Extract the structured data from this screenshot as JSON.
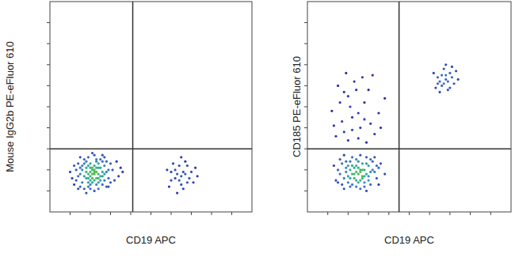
{
  "chart_data": [
    {
      "type": "scatter",
      "xlabel": "CD19 APC",
      "ylabel": "Mouse IgG2b PE-eFluor 610",
      "xlim": [
        0,
        100
      ],
      "ylim": [
        0,
        100
      ],
      "xticks": [
        10,
        20,
        30,
        40,
        50,
        60,
        70,
        80,
        90
      ],
      "yticks": [
        10,
        20,
        30,
        40,
        50,
        60,
        70,
        80,
        90
      ],
      "tick_labels": false,
      "grid": false,
      "color": "#2828a0",
      "gate_x": 41,
      "gate_y": 30,
      "x": [
        22,
        18,
        25,
        20,
        27,
        15,
        23,
        19,
        29,
        17,
        21,
        24,
        13,
        26,
        22,
        31,
        16,
        20,
        28,
        24,
        11,
        19,
        23,
        33,
        14,
        21,
        26,
        18,
        30,
        22,
        17,
        25,
        12,
        20,
        27,
        15,
        23,
        34,
        19,
        24,
        21,
        16,
        28,
        22,
        18,
        26,
        13,
        29,
        20,
        24,
        17,
        35,
        22,
        14,
        27,
        19,
        23,
        10,
        25,
        21,
        18,
        30,
        24,
        16,
        20,
        26,
        22,
        15,
        28,
        19,
        23,
        12,
        32,
        21,
        25,
        18,
        27,
        20,
        24,
        14,
        22,
        17,
        29,
        21,
        36,
        23,
        19,
        26,
        15,
        20,
        65,
        62,
        68,
        64,
        60,
        70,
        66,
        63,
        67,
        58,
        69,
        65,
        61,
        72,
        64,
        66,
        59,
        68,
        63,
        71,
        62,
        67,
        65,
        60,
        73
      ],
      "values": [
        19,
        21,
        17,
        15,
        22,
        18,
        24,
        12,
        16,
        25,
        20,
        14,
        20,
        27,
        10,
        20,
        14,
        23,
        12,
        21,
        16,
        18,
        16,
        24,
        23,
        28,
        19,
        9,
        14,
        22,
        17,
        25,
        13,
        17,
        15,
        26,
        19,
        17,
        14,
        11,
        21,
        20,
        24,
        15,
        24,
        13,
        15,
        20,
        19,
        18,
        11,
        21,
        27,
        17,
        18,
        22,
        13,
        19,
        21,
        16,
        19,
        23,
        16,
        22,
        13,
        24,
        18,
        12,
        19,
        26,
        21,
        22,
        15,
        14,
        15,
        16,
        26,
        21,
        23,
        11,
        20,
        23,
        12,
        18,
        19,
        25,
        16,
        17,
        21,
        11,
        17,
        20,
        14,
        22,
        15,
        19,
        11,
        18,
        24,
        20,
        16,
        13,
        23,
        21,
        15,
        19,
        12,
        22,
        9,
        14,
        16,
        18,
        26,
        19,
        17
      ]
    },
    {
      "type": "scatter",
      "xlabel": "CD19 APC",
      "ylabel": "CD185 PE-eFluor 610",
      "xlim": [
        0,
        100
      ],
      "ylim": [
        0,
        100
      ],
      "xticks": [
        10,
        20,
        30,
        40,
        50,
        60,
        70,
        80,
        90
      ],
      "yticks": [
        10,
        20,
        30,
        40,
        50,
        60,
        70,
        80,
        90
      ],
      "tick_labels": false,
      "grid": false,
      "color": "#2828a0",
      "gate_x": 45,
      "gate_y": 30,
      "x": [
        26,
        22,
        30,
        18,
        28,
        24,
        33,
        20,
        27,
        15,
        31,
        25,
        21,
        29,
        23,
        35,
        19,
        26,
        32,
        17,
        24,
        28,
        22,
        30,
        14,
        27,
        20,
        34,
        25,
        18,
        29,
        23,
        31,
        16,
        26,
        21,
        36,
        24,
        28,
        19,
        33,
        22,
        27,
        13,
        30,
        25,
        17,
        32,
        20,
        29,
        24,
        38,
        21,
        26,
        15,
        28,
        23,
        34,
        18,
        27,
        31,
        22,
        25,
        19,
        35,
        24,
        29,
        16,
        26,
        21,
        22,
        18,
        28,
        15,
        25,
        31,
        20,
        12,
        27,
        33,
        17,
        24,
        29,
        14,
        21,
        35,
        19,
        26,
        23,
        38,
        16,
        30,
        13,
        25,
        32,
        20,
        36,
        18,
        28,
        22,
        68,
        66,
        70,
        64,
        72,
        67,
        69,
        65,
        71,
        63,
        68,
        74,
        66,
        70,
        67,
        62,
        73,
        69,
        65,
        71,
        68,
        64
      ],
      "values": [
        20,
        18,
        22,
        16,
        14,
        25,
        19,
        22,
        17,
        20,
        13,
        21,
        12,
        26,
        16,
        21,
        19,
        11,
        24,
        23,
        15,
        20,
        26,
        17,
        15,
        23,
        14,
        16,
        18,
        27,
        10,
        21,
        19,
        18,
        15,
        24,
        23,
        12,
        17,
        21,
        26,
        13,
        20,
        22,
        15,
        24,
        13,
        20,
        17,
        23,
        19,
        18,
        20,
        27,
        14,
        12,
        18,
        22,
        11,
        16,
        25,
        22,
        14,
        24,
        13,
        22,
        18,
        25,
        19,
        16,
        45,
        38,
        52,
        60,
        35,
        42,
        55,
        48,
        64,
        37,
        43,
        58,
        33,
        36,
        50,
        47,
        66,
        40,
        62,
        54,
        52,
        58,
        41,
        47,
        65,
        34,
        40,
        57,
        44,
        39,
        63,
        60,
        66,
        64,
        61,
        68,
        58,
        62,
        64,
        59,
        70,
        63,
        65,
        59,
        61,
        66,
        67,
        62,
        57,
        69,
        65,
        61
      ]
    }
  ]
}
